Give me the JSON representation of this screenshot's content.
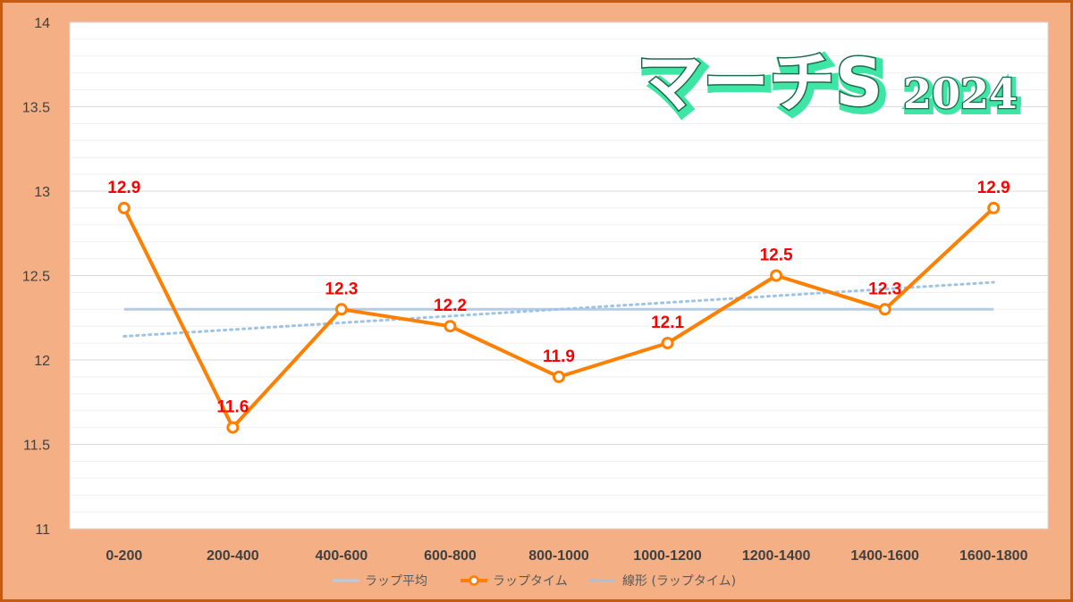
{
  "colors": {
    "background": "#f4b084",
    "border": "#c55a11",
    "plot_bg": "#ffffff",
    "lap_line": "#ff7f00",
    "average_line": "#b4cce4",
    "trend_line": "#9dc3e6",
    "data_label": "#ff0000",
    "title_glow": "#40e0a0"
  },
  "chart_data": {
    "type": "line",
    "title": "マーチS",
    "title_year": "2024",
    "categories": [
      "0-200",
      "200-400",
      "400-600",
      "600-800",
      "800-1000",
      "1000-1200",
      "1200-1400",
      "1400-1600",
      "1600-1800"
    ],
    "series": [
      {
        "name": "ラップ平均",
        "values": [
          12.3,
          12.3,
          12.3,
          12.3,
          12.3,
          12.3,
          12.3,
          12.3,
          12.3
        ],
        "style": "solid"
      },
      {
        "name": "ラップタイム",
        "values": [
          12.9,
          11.6,
          12.3,
          12.2,
          11.9,
          12.1,
          12.5,
          12.3,
          12.9
        ],
        "style": "markers",
        "labels": [
          "12.9",
          "11.6",
          "12.3",
          "12.2",
          "11.9",
          "12.1",
          "12.5",
          "12.3",
          "12.9"
        ]
      },
      {
        "name": "線形 (ラップタイム)",
        "values": [
          12.14,
          12.18,
          12.22,
          12.26,
          12.3,
          12.34,
          12.38,
          12.42,
          12.46
        ],
        "style": "dotted"
      }
    ],
    "yticks": [
      "14",
      "13.5",
      "13",
      "12.5",
      "12",
      "11.5",
      "11"
    ],
    "ylim": [
      11,
      14
    ],
    "xlabel": "",
    "ylabel": "",
    "grid": true,
    "legend": "bottom"
  }
}
